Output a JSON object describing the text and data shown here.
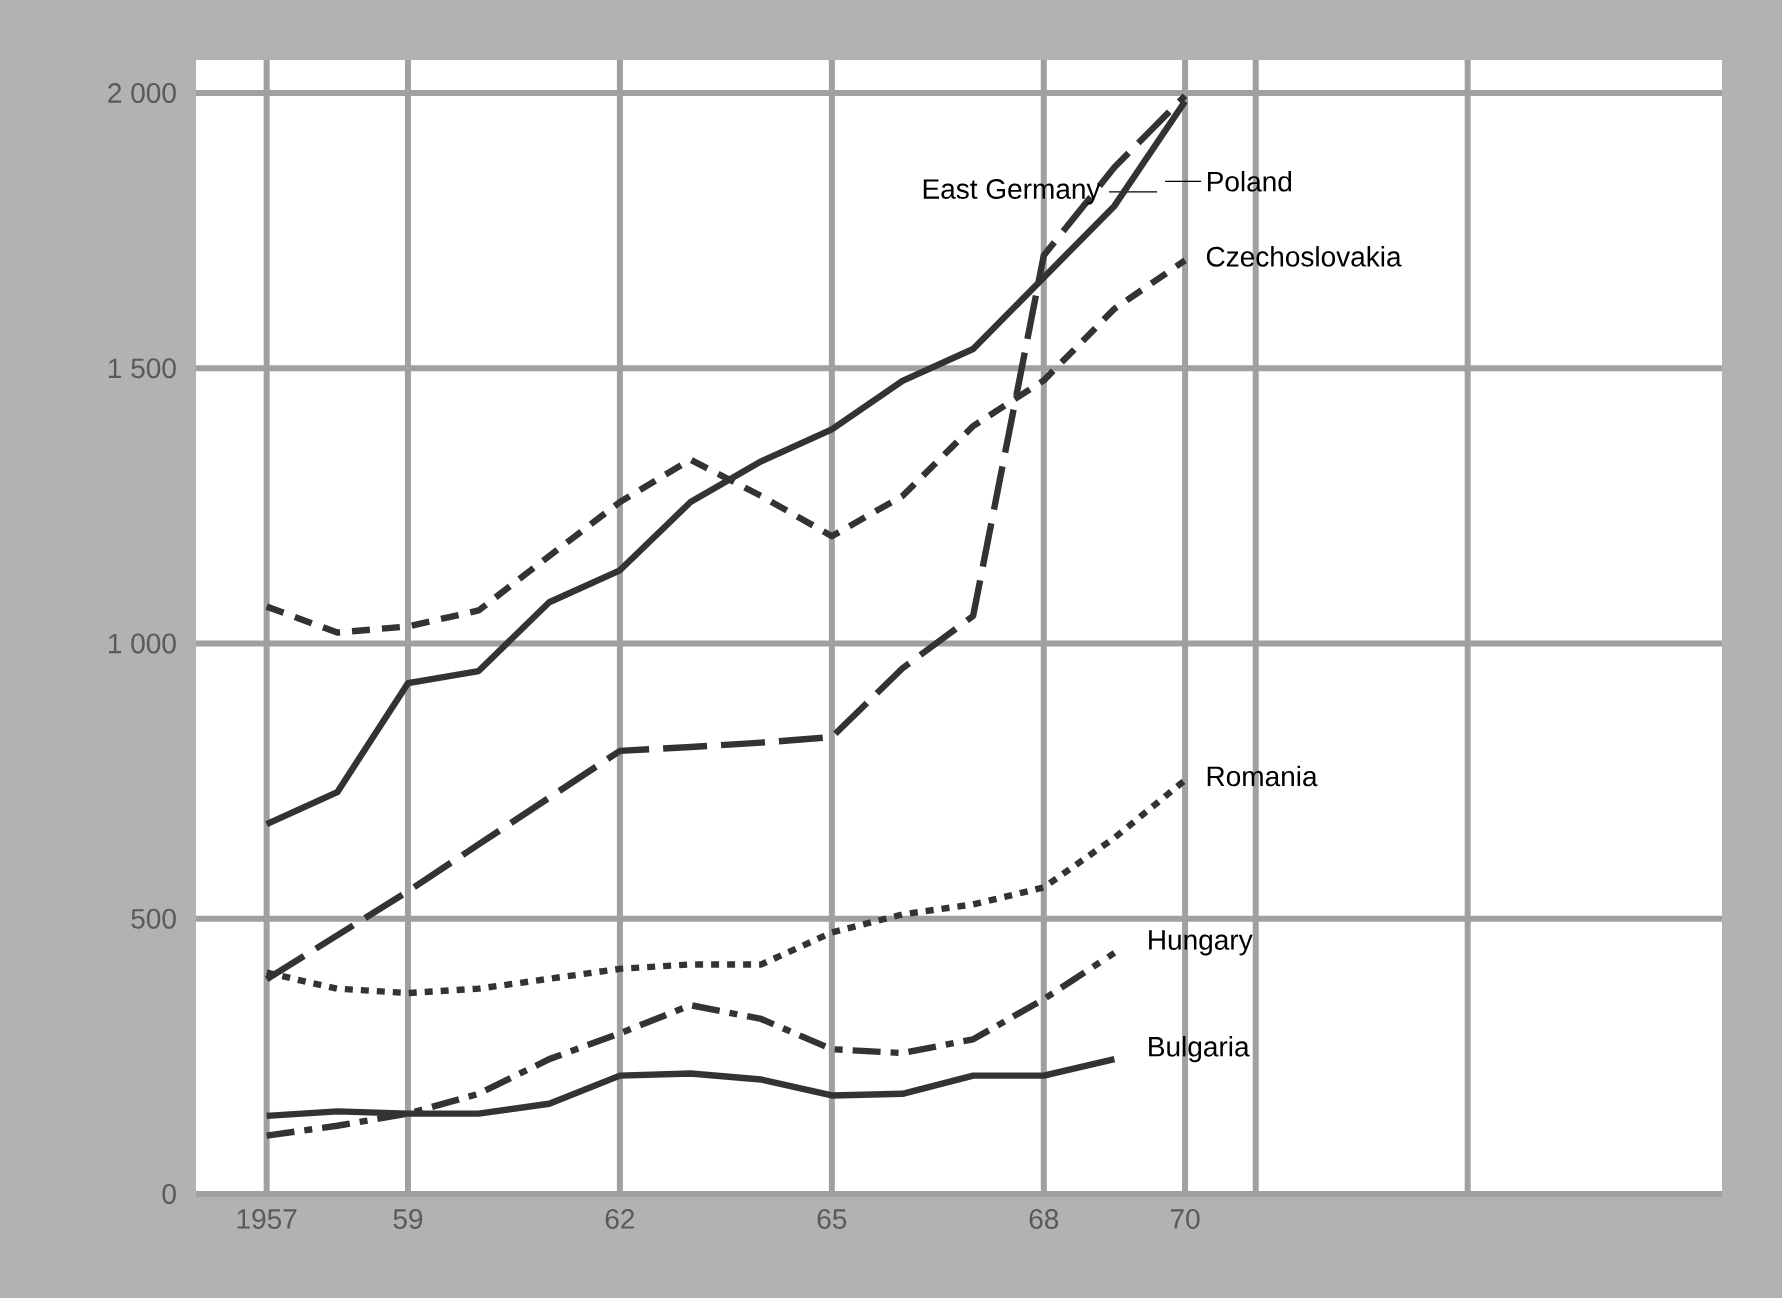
{
  "chart_data": {
    "type": "line",
    "x": [
      1957,
      1958,
      1959,
      1960,
      1961,
      1962,
      1963,
      1964,
      1965,
      1966,
      1967,
      1968,
      1969,
      1970
    ],
    "series": [
      {
        "name": "East Germany",
        "color": "#333333",
        "line_style": "longdash",
        "values": [
          390,
          470,
          550,
          635,
          720,
          805,
          812,
          820,
          830,
          955,
          1050,
          1705,
          1865,
          1995
        ]
      },
      {
        "name": "Poland",
        "color": "#333333",
        "line_style": "solid",
        "values": [
          672,
          730,
          928,
          950,
          1075,
          1133,
          1257,
          1331,
          1389,
          1477,
          1535,
          1665,
          1795,
          1985
        ]
      },
      {
        "name": "Czechoslovakia",
        "color": "#333333",
        "line_style": "dashed",
        "values": [
          1067,
          1020,
          1031,
          1060,
          1159,
          1257,
          1334,
          1268,
          1195,
          1268,
          1395,
          1478,
          1608,
          1696
        ]
      },
      {
        "name": "Romania",
        "color": "#333333",
        "line_style": "dotted",
        "values": [
          402,
          373,
          365,
          373,
          391,
          409,
          417,
          417,
          475,
          508,
          526,
          557,
          647,
          752
        ]
      },
      {
        "name": "Hungary",
        "color": "#333333",
        "line_style": "dashdot",
        "values": [
          106,
          124,
          146,
          182,
          245,
          292,
          343,
          318,
          263,
          256,
          281,
          354,
          438,
          null
        ]
      },
      {
        "name": "Bulgaria",
        "color": "#333333",
        "line_style": "solid",
        "values": [
          142,
          150,
          146,
          146,
          164,
          215,
          219,
          208,
          179,
          182,
          215,
          215,
          245,
          null
        ]
      }
    ],
    "xlim": [
      1956,
      1977.6
    ],
    "ylim": [
      0,
      2060
    ],
    "xticks": [
      1957,
      {
        "value": 1959,
        "label": "59"
      },
      {
        "value": 1962,
        "label": "62"
      },
      {
        "value": 1965,
        "label": "65"
      },
      {
        "value": 1968,
        "label": "68"
      },
      {
        "value": 1970,
        "label": "70"
      },
      {
        "value": 1971,
        "label": null
      },
      {
        "value": 1974,
        "label": null
      }
    ],
    "yticks": [
      0,
      500,
      {
        "value": 1000,
        "label": "1 000"
      },
      {
        "value": 1500,
        "label": "1 500"
      },
      {
        "value": 2000,
        "label": "2 000"
      }
    ],
    "grid": true
  }
}
